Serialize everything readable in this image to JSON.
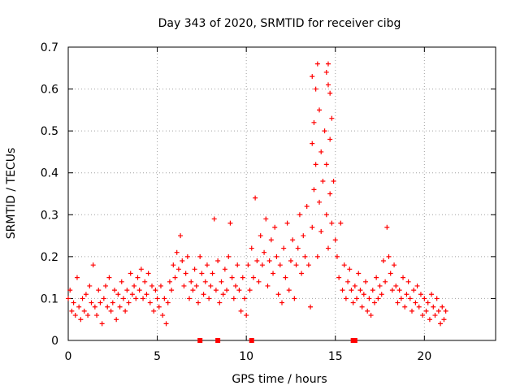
{
  "chart_data": {
    "type": "scatter",
    "title": "Day 343 of 2020, SRMTID for receiver cibg",
    "xlabel": "GPS time / hours",
    "ylabel": "SRMTID / TECUs",
    "xlim": [
      0,
      24
    ],
    "ylim": [
      0,
      0.7
    ],
    "xticks": [
      0,
      5,
      10,
      15,
      20
    ],
    "yticks": [
      0,
      0.1,
      0.2,
      0.3,
      0.4,
      0.5,
      0.6,
      0.7
    ],
    "xtick_labels": [
      "0",
      "5",
      "10",
      "15",
      "20"
    ],
    "ytick_labels": [
      "0",
      "0.1",
      "0.2",
      "0.3",
      "0.4",
      "0.5",
      "0.6",
      "0.7"
    ],
    "grid": true,
    "marker": "+",
    "color": "#ff0000",
    "series": [
      {
        "name": "SRMTID",
        "points": [
          [
            0.0,
            0.1
          ],
          [
            0.1,
            0.12
          ],
          [
            0.2,
            0.07
          ],
          [
            0.3,
            0.09
          ],
          [
            0.4,
            0.06
          ],
          [
            0.5,
            0.15
          ],
          [
            0.6,
            0.08
          ],
          [
            0.7,
            0.05
          ],
          [
            0.8,
            0.1
          ],
          [
            0.9,
            0.07
          ],
          [
            1.0,
            0.11
          ],
          [
            1.1,
            0.06
          ],
          [
            1.2,
            0.13
          ],
          [
            1.3,
            0.09
          ],
          [
            1.4,
            0.18
          ],
          [
            1.5,
            0.08
          ],
          [
            1.6,
            0.06
          ],
          [
            1.7,
            0.12
          ],
          [
            1.8,
            0.09
          ],
          [
            1.9,
            0.04
          ],
          [
            2.0,
            0.1
          ],
          [
            2.1,
            0.13
          ],
          [
            2.2,
            0.08
          ],
          [
            2.3,
            0.15
          ],
          [
            2.4,
            0.07
          ],
          [
            2.5,
            0.09
          ],
          [
            2.6,
            0.12
          ],
          [
            2.7,
            0.05
          ],
          [
            2.8,
            0.11
          ],
          [
            2.9,
            0.08
          ],
          [
            3.0,
            0.14
          ],
          [
            3.1,
            0.1
          ],
          [
            3.2,
            0.07
          ],
          [
            3.3,
            0.12
          ],
          [
            3.4,
            0.09
          ],
          [
            3.5,
            0.16
          ],
          [
            3.6,
            0.11
          ],
          [
            3.7,
            0.13
          ],
          [
            3.8,
            0.1
          ],
          [
            3.9,
            0.15
          ],
          [
            4.0,
            0.12
          ],
          [
            4.1,
            0.17
          ],
          [
            4.2,
            0.1
          ],
          [
            4.3,
            0.14
          ],
          [
            4.4,
            0.11
          ],
          [
            4.5,
            0.16
          ],
          [
            4.6,
            0.09
          ],
          [
            4.7,
            0.13
          ],
          [
            4.8,
            0.07
          ],
          [
            4.9,
            0.12
          ],
          [
            5.0,
            0.1
          ],
          [
            5.1,
            0.08
          ],
          [
            5.2,
            0.13
          ],
          [
            5.3,
            0.06
          ],
          [
            5.4,
            0.1
          ],
          [
            5.5,
            0.04
          ],
          [
            5.6,
            0.09
          ],
          [
            5.7,
            0.14
          ],
          [
            5.8,
            0.12
          ],
          [
            5.9,
            0.18
          ],
          [
            6.0,
            0.15
          ],
          [
            6.1,
            0.21
          ],
          [
            6.2,
            0.17
          ],
          [
            6.3,
            0.25
          ],
          [
            6.4,
            0.19
          ],
          [
            6.5,
            0.13
          ],
          [
            6.6,
            0.16
          ],
          [
            6.7,
            0.2
          ],
          [
            6.8,
            0.1
          ],
          [
            6.9,
            0.14
          ],
          [
            7.0,
            0.12
          ],
          [
            7.1,
            0.17
          ],
          [
            7.2,
            0.13
          ],
          [
            7.3,
            0.09
          ],
          [
            7.4,
            0.2
          ],
          [
            7.5,
            0.16
          ],
          [
            7.6,
            0.11
          ],
          [
            7.7,
            0.14
          ],
          [
            7.8,
            0.18
          ],
          [
            7.9,
            0.1
          ],
          [
            8.0,
            0.13
          ],
          [
            8.1,
            0.16
          ],
          [
            8.2,
            0.29
          ],
          [
            8.3,
            0.12
          ],
          [
            8.4,
            0.19
          ],
          [
            8.5,
            0.09
          ],
          [
            8.6,
            0.14
          ],
          [
            8.7,
            0.11
          ],
          [
            8.8,
            0.17
          ],
          [
            8.9,
            0.12
          ],
          [
            9.0,
            0.2
          ],
          [
            9.1,
            0.28
          ],
          [
            9.2,
            0.15
          ],
          [
            9.3,
            0.1
          ],
          [
            9.4,
            0.13
          ],
          [
            9.5,
            0.18
          ],
          [
            9.6,
            0.12
          ],
          [
            9.7,
            0.07
          ],
          [
            9.8,
            0.15
          ],
          [
            9.9,
            0.1
          ],
          [
            10.0,
            0.06
          ],
          [
            10.1,
            0.18
          ],
          [
            10.2,
            0.12
          ],
          [
            10.3,
            0.22
          ],
          [
            10.4,
            0.15
          ],
          [
            10.5,
            0.34
          ],
          [
            10.6,
            0.19
          ],
          [
            10.7,
            0.14
          ],
          [
            10.8,
            0.25
          ],
          [
            10.9,
            0.18
          ],
          [
            11.0,
            0.21
          ],
          [
            11.1,
            0.29
          ],
          [
            11.2,
            0.13
          ],
          [
            11.3,
            0.19
          ],
          [
            11.4,
            0.24
          ],
          [
            11.5,
            0.16
          ],
          [
            11.6,
            0.27
          ],
          [
            11.7,
            0.2
          ],
          [
            11.8,
            0.11
          ],
          [
            11.9,
            0.18
          ],
          [
            12.0,
            0.09
          ],
          [
            12.1,
            0.22
          ],
          [
            12.2,
            0.15
          ],
          [
            12.3,
            0.28
          ],
          [
            12.4,
            0.12
          ],
          [
            12.5,
            0.19
          ],
          [
            12.6,
            0.24
          ],
          [
            12.7,
            0.1
          ],
          [
            12.8,
            0.18
          ],
          [
            12.9,
            0.22
          ],
          [
            13.0,
            0.3
          ],
          [
            13.1,
            0.16
          ],
          [
            13.2,
            0.25
          ],
          [
            13.3,
            0.2
          ],
          [
            13.4,
            0.32
          ],
          [
            13.5,
            0.18
          ],
          [
            13.6,
            0.08
          ],
          [
            13.7,
            0.27
          ],
          [
            13.8,
            0.36
          ],
          [
            13.9,
            0.42
          ],
          [
            14.0,
            0.2
          ],
          [
            14.1,
            0.33
          ],
          [
            14.2,
            0.26
          ],
          [
            14.3,
            0.38
          ],
          [
            14.4,
            0.5
          ],
          [
            14.5,
            0.3
          ],
          [
            14.6,
            0.22
          ],
          [
            14.7,
            0.35
          ],
          [
            14.8,
            0.28
          ],
          [
            14.9,
            0.38
          ],
          [
            15.0,
            0.24
          ],
          [
            15.1,
            0.2
          ],
          [
            15.2,
            0.15
          ],
          [
            15.3,
            0.28
          ],
          [
            15.4,
            0.12
          ],
          [
            15.5,
            0.18
          ],
          [
            15.6,
            0.1
          ],
          [
            15.7,
            0.14
          ],
          [
            15.8,
            0.17
          ],
          [
            15.9,
            0.12
          ],
          [
            16.0,
            0.09
          ],
          [
            16.1,
            0.13
          ],
          [
            16.2,
            0.1
          ],
          [
            16.3,
            0.16
          ],
          [
            16.4,
            0.12
          ],
          [
            16.5,
            0.08
          ],
          [
            16.6,
            0.11
          ],
          [
            16.7,
            0.14
          ],
          [
            16.8,
            0.07
          ],
          [
            16.9,
            0.1
          ],
          [
            17.0,
            0.06
          ],
          [
            17.1,
            0.12
          ],
          [
            17.2,
            0.09
          ],
          [
            17.3,
            0.15
          ],
          [
            17.4,
            0.1
          ],
          [
            17.5,
            0.13
          ],
          [
            17.6,
            0.11
          ],
          [
            17.7,
            0.19
          ],
          [
            17.8,
            0.14
          ],
          [
            17.9,
            0.27
          ],
          [
            18.0,
            0.2
          ],
          [
            18.1,
            0.16
          ],
          [
            18.2,
            0.12
          ],
          [
            18.3,
            0.18
          ],
          [
            18.4,
            0.13
          ],
          [
            18.5,
            0.09
          ],
          [
            18.6,
            0.12
          ],
          [
            18.7,
            0.1
          ],
          [
            18.8,
            0.15
          ],
          [
            18.9,
            0.08
          ],
          [
            19.0,
            0.11
          ],
          [
            19.1,
            0.14
          ],
          [
            19.2,
            0.1
          ],
          [
            19.3,
            0.07
          ],
          [
            19.4,
            0.12
          ],
          [
            19.5,
            0.09
          ],
          [
            19.6,
            0.13
          ],
          [
            19.7,
            0.08
          ],
          [
            19.8,
            0.11
          ],
          [
            19.9,
            0.06
          ],
          [
            20.0,
            0.1
          ],
          [
            20.1,
            0.07
          ],
          [
            20.2,
            0.09
          ],
          [
            20.3,
            0.05
          ],
          [
            20.4,
            0.11
          ],
          [
            20.5,
            0.08
          ],
          [
            20.6,
            0.06
          ],
          [
            20.7,
            0.1
          ],
          [
            20.8,
            0.07
          ],
          [
            20.9,
            0.04
          ],
          [
            21.0,
            0.08
          ],
          [
            21.1,
            0.05
          ],
          [
            21.2,
            0.07
          ],
          [
            13.7,
            0.63
          ],
          [
            13.9,
            0.6
          ],
          [
            14.0,
            0.66
          ],
          [
            14.1,
            0.55
          ],
          [
            14.5,
            0.64
          ],
          [
            14.6,
            0.66
          ],
          [
            14.7,
            0.59
          ],
          [
            14.8,
            0.53
          ],
          [
            14.6,
            0.61
          ],
          [
            13.8,
            0.52
          ],
          [
            14.7,
            0.48
          ],
          [
            14.2,
            0.45
          ],
          [
            14.5,
            0.42
          ],
          [
            13.7,
            0.47
          ]
        ]
      },
      {
        "name": "gap markers",
        "points": [
          [
            7.4,
            0
          ],
          [
            8.4,
            0
          ],
          [
            10.3,
            0
          ],
          [
            16.0,
            0
          ],
          [
            16.1,
            0
          ]
        ]
      }
    ]
  }
}
